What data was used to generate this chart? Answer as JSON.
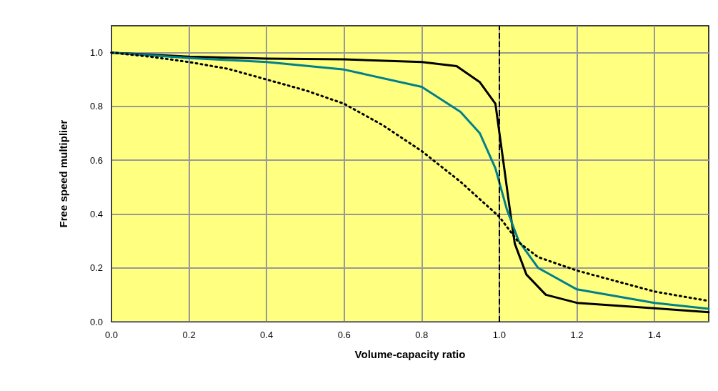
{
  "chart_data": {
    "type": "line",
    "xlabel": "Volume-capacity ratio",
    "ylabel": "Free speed multiplier",
    "xlim": [
      0,
      1.54
    ],
    "ylim": [
      0,
      1.1
    ],
    "xticks": [
      {
        "value": 0,
        "label": "0.0"
      },
      {
        "value": 0.2,
        "label": "0.2"
      },
      {
        "value": 0.4,
        "label": "0.4"
      },
      {
        "value": 0.6,
        "label": "0.6"
      },
      {
        "value": 0.8,
        "label": "0.8"
      },
      {
        "value": 1,
        "label": "1.0"
      },
      {
        "value": 1.2,
        "label": "1.2"
      },
      {
        "value": 1.4,
        "label": "1.4"
      }
    ],
    "yticks": [
      {
        "value": 0,
        "label": "0.0"
      },
      {
        "value": 0.2,
        "label": "0.2"
      },
      {
        "value": 0.4,
        "label": "0.4"
      },
      {
        "value": 0.6,
        "label": "0.6"
      },
      {
        "value": 0.8,
        "label": "0.8"
      },
      {
        "value": 1,
        "label": "1.0"
      }
    ],
    "grid": true,
    "marker": "none",
    "series": [
      {
        "color": "#000000",
        "line_style": "solid",
        "x": [
          0,
          0.2,
          0.4,
          0.6,
          0.8,
          0.89,
          0.95,
          0.99,
          1.01,
          1.026,
          1.04,
          1.07,
          1.12,
          1.2,
          1.4,
          1.54
        ],
        "values": [
          1.0,
          0.985,
          0.978,
          0.975,
          0.965,
          0.95,
          0.89,
          0.81,
          0.6,
          0.43,
          0.29,
          0.175,
          0.1,
          0.07,
          0.05,
          0.035
        ]
      },
      {
        "color": "#00808a",
        "line_style": "solid",
        "x": [
          0,
          0.2,
          0.4,
          0.6,
          0.8,
          0.9,
          0.95,
          0.99,
          1.02,
          1.05,
          1.1,
          1.2,
          1.4,
          1.54
        ],
        "values": [
          1.0,
          0.98,
          0.965,
          0.937,
          0.873,
          0.78,
          0.7,
          0.57,
          0.415,
          0.3,
          0.2,
          0.12,
          0.07,
          0.048
        ]
      },
      {
        "color": "#000000",
        "line_style": "dotted",
        "x": [
          0,
          0.1,
          0.2,
          0.3,
          0.4,
          0.5,
          0.6,
          0.7,
          0.8,
          0.9,
          1.0,
          1.05,
          1.1,
          1.2,
          1.4,
          1.54
        ],
        "values": [
          1.0,
          0.985,
          0.965,
          0.94,
          0.9,
          0.86,
          0.81,
          0.73,
          0.634,
          0.52,
          0.39,
          0.295,
          0.24,
          0.19,
          0.112,
          0.077
        ]
      }
    ],
    "ref_lines": [
      {
        "axis": "x",
        "value": 1,
        "color": "#000000",
        "line_style": "dashed"
      }
    ]
  }
}
